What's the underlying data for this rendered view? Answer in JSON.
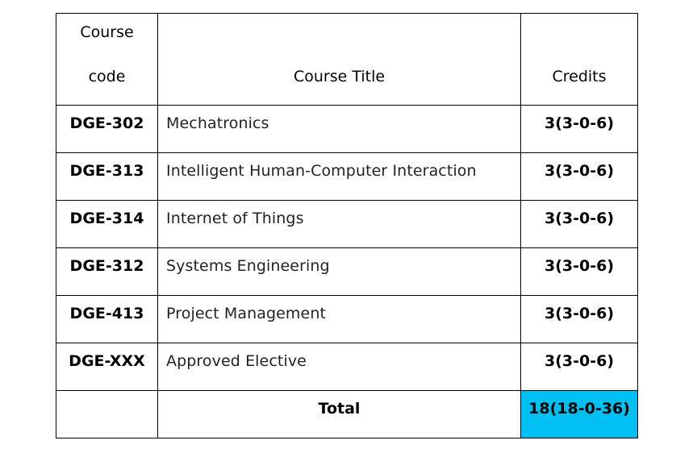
{
  "table": {
    "headers": {
      "code_line1": "Course",
      "code_line2": "code",
      "title": "Course Title",
      "credits": "Credits"
    },
    "rows": [
      {
        "code": "DGE-302",
        "title": "Mechatronics",
        "credits": "3(3-0-6)"
      },
      {
        "code": "DGE-313",
        "title": "Intelligent Human-Computer Interaction",
        "credits": "3(3-0-6)"
      },
      {
        "code": "DGE-314",
        "title": "Internet of Things",
        "credits": "3(3-0-6)"
      },
      {
        "code": "DGE-312",
        "title": "Systems Engineering",
        "credits": "3(3-0-6)"
      },
      {
        "code": "DGE-413",
        "title": "Project Management",
        "credits": "3(3-0-6)"
      },
      {
        "code": "DGE-XXX",
        "title": "Approved Elective",
        "credits": "3(3-0-6)"
      }
    ],
    "total": {
      "label": "Total",
      "value": "18(18-0-36)"
    }
  },
  "colors": {
    "border": "#000000",
    "total_highlight": "#00bff3"
  }
}
